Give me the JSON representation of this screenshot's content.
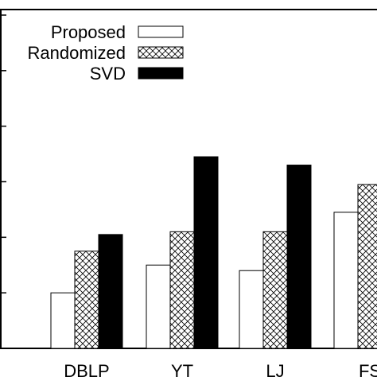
{
  "chart_data": {
    "type": "bar",
    "title": "",
    "xlabel": "",
    "ylabel": "",
    "categories": [
      "DBLP",
      "YT",
      "LJ",
      "FS"
    ],
    "series": [
      {
        "name": "Proposed",
        "values": [
          1.0,
          1.5,
          1.4,
          2.45
        ],
        "fill": "#ffffff",
        "pattern": "none"
      },
      {
        "name": "Randomized",
        "values": [
          1.75,
          2.1,
          2.1,
          2.95
        ],
        "fill": "#ffffff",
        "pattern": "crosshatch"
      },
      {
        "name": "SVD",
        "values": [
          2.05,
          3.45,
          3.3,
          null
        ],
        "fill": "#000000",
        "pattern": "none"
      }
    ],
    "ylim": [
      0,
      6.1
    ],
    "yticks": [
      0,
      1,
      2,
      3,
      4,
      5,
      6
    ],
    "legend": "top-right",
    "grid": false
  }
}
